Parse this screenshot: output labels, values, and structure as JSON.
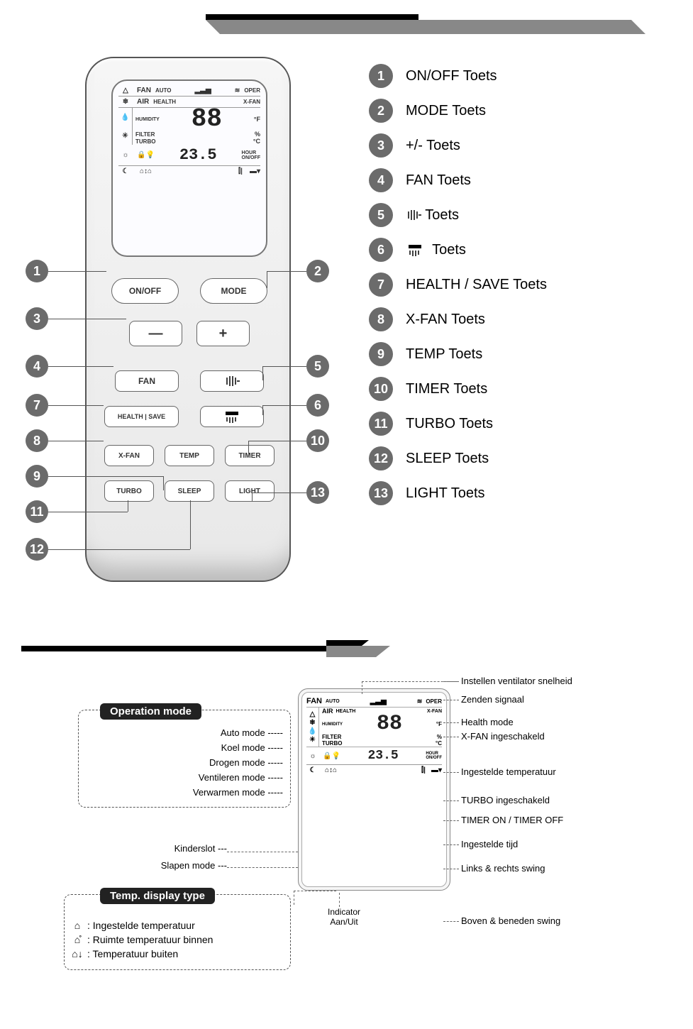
{
  "colors": {
    "callout_bg": "#6b6b6b",
    "callout_fg": "#ffffff",
    "label_bg": "#222222",
    "label_fg": "#ffffff"
  },
  "display": {
    "fan": "FAN",
    "auto": "AUTO",
    "oper": "OPER",
    "air": "AIR",
    "health": "HEALTH",
    "xfan": "X-FAN",
    "humidity": "HUMIDITY",
    "degF": "°F",
    "filter": "FILTER",
    "pct": "%",
    "turbo": "TURBO",
    "degC": "°C",
    "big": "88",
    "time": "23.5",
    "hour": "HOUR",
    "onoff": "ON/OFF"
  },
  "buttons": {
    "onoff": "ON/OFF",
    "mode": "MODE",
    "minus": "—",
    "plus": "+",
    "fan": "FAN",
    "healthsave": "HEALTH | SAVE",
    "xfan": "X-FAN",
    "temp": "TEMP",
    "timer": "TIMER",
    "turbo": "TURBO",
    "sleep": "SLEEP",
    "light": "LIGHT"
  },
  "callouts": {
    "c1": "1",
    "c2": "2",
    "c3": "3",
    "c4": "4",
    "c5": "5",
    "c6": "6",
    "c7": "7",
    "c8": "8",
    "c9": "9",
    "c10": "10",
    "c11": "11",
    "c12": "12",
    "c13": "13"
  },
  "legend": [
    {
      "num": "1",
      "label": "ON/OFF Toets"
    },
    {
      "num": "2",
      "label": "MODE Toets"
    },
    {
      "num": "3",
      "label": "+/- Toets"
    },
    {
      "num": "4",
      "label": "FAN Toets"
    },
    {
      "num": "5",
      "label": "Toets",
      "icon": "swing-lr"
    },
    {
      "num": "6",
      "label": "Toets",
      "icon": "swing-ud"
    },
    {
      "num": "7",
      "label": "HEALTH / SAVE Toets"
    },
    {
      "num": "8",
      "label": "X-FAN Toets"
    },
    {
      "num": "9",
      "label": "TEMP Toets"
    },
    {
      "num": "10",
      "label": "TIMER Toets"
    },
    {
      "num": "11",
      "label": "TURBO Toets"
    },
    {
      "num": "12",
      "label": "SLEEP Toets"
    },
    {
      "num": "13",
      "label": "LIGHT Toets"
    }
  ],
  "op_mode": {
    "title": "Operation mode",
    "rows": [
      "Auto mode",
      "Koel mode",
      "Drogen mode",
      "Ventileren mode",
      "Verwarmen mode"
    ]
  },
  "left_annots": {
    "kinderslot": "Kinderslot",
    "slapen": "Slapen mode"
  },
  "temp_display": {
    "title": "Temp. display type",
    "rows": [
      ": Ingestelde temperatuur",
      ": Ruimte temperatuur binnen",
      ": Temperatuur buiten"
    ]
  },
  "indicator": {
    "l1": "Indicator",
    "l2": "Aan/Uit"
  },
  "right_annots": [
    "Instellen ventilator snelheid",
    "Zenden signaal",
    "Health mode",
    "X-FAN ingeschakeld",
    "Ingestelde temperatuur",
    "TURBO ingeschakeld",
    "TIMER ON / TIMER OFF",
    "Ingestelde tijd",
    "Links & rechts swing",
    "Boven & beneden swing"
  ]
}
